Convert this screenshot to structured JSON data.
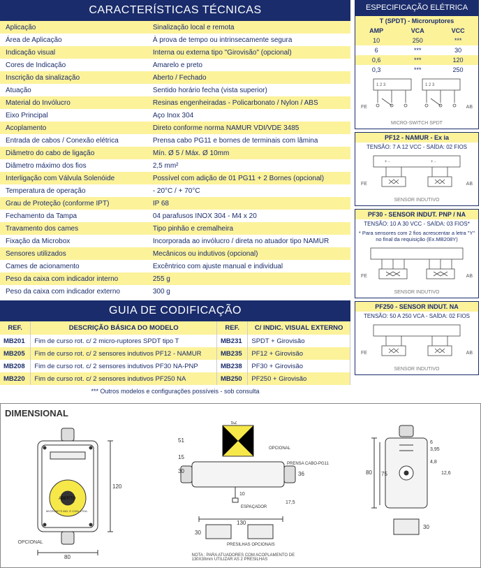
{
  "colors": {
    "header_bg": "#1a2c6b",
    "header_fg": "#ffffff",
    "row_yellow": "#fcf29a",
    "row_white": "#ffffff",
    "text": "#1a2c6b"
  },
  "specs": {
    "title": "CARACTERÍSTICAS TÉCNICAS",
    "rows": [
      [
        "Aplicação",
        "Sinalização local e remota"
      ],
      [
        "Área de Aplicação",
        "À prova de tempo ou intrinsecamente segura"
      ],
      [
        "Indicação visual",
        "Interna ou externa tipo \"Girovisão\" (opcional)"
      ],
      [
        "Cores de Indicação",
        "Amarelo e preto"
      ],
      [
        "Inscrição da sinalização",
        "Aberto / Fechado"
      ],
      [
        "Atuação",
        "Sentido horário fecha (vista superior)"
      ],
      [
        "Material do Invólucro",
        "Resinas engenheiradas - Policarbonato / Nylon / ABS"
      ],
      [
        "Eixo Principal",
        "Aço Inox 304"
      ],
      [
        "Acoplamento",
        "Direto conforme norma NAMUR VDI/VDE 3485"
      ],
      [
        "Entrada de cabos / Conexão elétrica",
        "Prensa cabo PG11 e bornes de terminais com lâmina"
      ],
      [
        "Diâmetro do cabo de ligação",
        "Mín. Ø 5 / Máx. Ø 10mm"
      ],
      [
        "Diâmetro máximo dos fios",
        "2,5 mm²"
      ],
      [
        "Interligação com Válvula Solenóide",
        "Possível com adição de 01 PG11 + 2 Bornes (opcional)"
      ],
      [
        "Temperatura de operação",
        "- 20°C / + 70°C"
      ],
      [
        "Grau de Proteção (conforme IPT)",
        "IP 68"
      ],
      [
        "Fechamento da Tampa",
        "04 parafusos INOX 304 - M4 x 20"
      ],
      [
        "Travamento dos cames",
        "Tipo pinhão e cremalheira"
      ],
      [
        "Fixação da Microbox",
        "Incorporada ao invólucro / direta no atuador tipo NAMUR"
      ],
      [
        "Sensores utilizados",
        "Mecânicos ou indutivos (opcional)"
      ],
      [
        "Cames de acionamento",
        "Excêntrico com ajuste manual e individual"
      ],
      [
        "Peso da caixa com indicador interno",
        "255 g"
      ],
      [
        "Peso da caixa com indicador externo",
        "300 g"
      ]
    ]
  },
  "codif": {
    "title": "GUIA DE CODIFICAÇÃO",
    "headers": [
      "REF.",
      "DESCRIÇÃO BÁSICA DO MODELO",
      "REF.",
      "C/ INDIC. VISUAL EXTERNO"
    ],
    "rows": [
      [
        "MB201",
        "Fim de curso rot. c/ 2 micro-ruptores SPDT tipo T",
        "MB231",
        "SPDT + Girovisão"
      ],
      [
        "MB205",
        "Fim de curso rot. c/ 2 sensores indutivos PF12 - NAMUR",
        "MB235",
        "PF12 + Girovisão"
      ],
      [
        "MB208",
        "Fim de curso rot. c/ 2 sensores indutivos PF30 NA-PNP",
        "MB238",
        "PF30 + Girovisão"
      ],
      [
        "MB220",
        "Fim de curso rot. c/ 2 sensores indutivos PF250 NA",
        "MB250",
        "PF250 + Girovisão"
      ]
    ],
    "note": "*** Outros modelos e configurações possíveis - sob consulta"
  },
  "elec": {
    "title": "ESPECIFICAÇÃO ELÉTRICA",
    "micro": {
      "title": "T (SPDT) - Microruptores",
      "headers": [
        "AMP",
        "VCA",
        "VCC"
      ],
      "rows": [
        [
          "10",
          "250",
          "***"
        ],
        [
          "6",
          "***",
          "30"
        ],
        [
          "0,6",
          "***",
          "120"
        ],
        [
          "0,3",
          "***",
          "250"
        ]
      ],
      "caption": "MICRO-SWITCH SPDT"
    },
    "pf12": {
      "title": "PF12 - NAMUR - Ex ia",
      "sub": "TENSÃO: 7 A 12 VCC - SAÍDA: 02 FIOS",
      "caption": "SENSOR INDUTIVO"
    },
    "pf30": {
      "title": "PF30 - SENSOR INDUT. PNP / NA",
      "sub": "TENSÃO: 10 A 30 VCC - SAÍDA: 03 FIOS*",
      "note": "* Para sensores com 2 fios acrescentar a letra \"Y\" no final da requisição (Ex.MB208Y)",
      "caption": "SENSOR INDUTIVO"
    },
    "pf250": {
      "title": "PF250 - SENSOR INDUT. NA",
      "sub": "TENSÃO: 50 A 250 VCA - SAÍDA: 02 FIOS",
      "caption": "SENSOR INDUTIVO"
    },
    "labels": {
      "fe": "FE",
      "ab": "AB"
    }
  },
  "dims": {
    "title": "DIMENSIONAL",
    "front": {
      "w": "80",
      "h": "120",
      "opcional": "OPCIONAL",
      "aberto": "ABERTO",
      "brand": "MICRONIT'S  IND. E  COM. LTDA."
    },
    "top": {
      "w": "52",
      "h1": "51",
      "h2": "15",
      "h3": "30",
      "h4": "36",
      "sp": "10",
      "base_w": "130",
      "base_h": "30",
      "base_w2": "17,5",
      "opcional": "OPCIONAL",
      "prensa": "PRENSA CABO-PG11",
      "espac": "ESPAÇADOR",
      "pres": "PRESILHAS OPCIONAIS",
      "nota": "NOTA : PARA ATUADORES COM ACOPLAMENTO DE 130X30mm UTILIZAR AS 2 PRESILHAS"
    },
    "side": {
      "h": "80",
      "h2": "75",
      "d1": "6",
      "d2": "3,95",
      "d3": "4,8",
      "d4": "12,6",
      "base_h": "30"
    }
  }
}
